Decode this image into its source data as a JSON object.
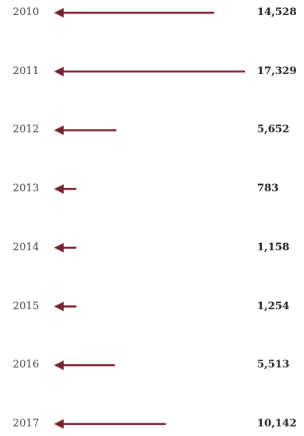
{
  "chart_data": {
    "type": "bar",
    "orientation": "horizontal",
    "categories": [
      "2010",
      "2011",
      "2012",
      "2013",
      "2014",
      "2015",
      "2016",
      "2017"
    ],
    "values": [
      14528,
      17329,
      5652,
      783,
      1158,
      1254,
      5513,
      10142
    ],
    "value_labels": [
      "14,528",
      "17,329",
      "5,652",
      "783",
      "1,158",
      "1,254",
      "5,513",
      "10,142"
    ],
    "xlim": [
      0,
      17329
    ],
    "grid": false,
    "legend": "none"
  },
  "colors": {
    "arrow": "#7a1f33",
    "year_text": "#333333",
    "value_text": "#222222"
  },
  "icons": {
    "mark": "left-arrow-icon"
  }
}
